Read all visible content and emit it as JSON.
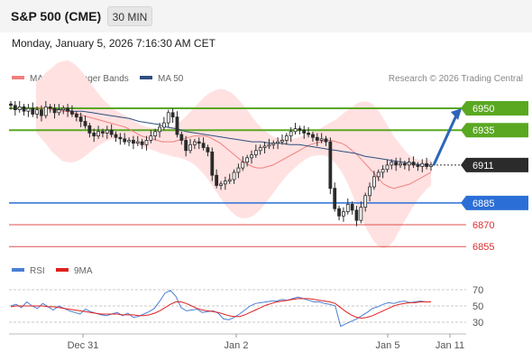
{
  "header": {
    "title": "S&P 500 (CME)",
    "timeframe": "30 MIN",
    "timestamp": "Monday, January 5, 2026 7:16:30 AM CET"
  },
  "legend": {
    "bollinger": "MA 20 + Bollinger Bands",
    "ma50": "MA 50",
    "credit": "Research © 2026 Trading Central"
  },
  "rsi": {
    "label": "RSI",
    "ma_label": "9MA",
    "ticks": [
      "70",
      "50",
      "30"
    ]
  },
  "colors": {
    "resistance": "#5aa822",
    "pivot": "#2b6fd6",
    "support": "#e05050",
    "current": "#2b2b2b",
    "bollinger_fill": "#ffe1e1",
    "ma20": "#f08080",
    "ma50": "#2f4f7f",
    "candle": "#2b2b2b",
    "arrow": "#2b66b8"
  },
  "chart_data": [
    {
      "type": "candlestick",
      "title": "S&P 500 (CME)",
      "timeframe": "30 MIN",
      "x_ticks": [
        "Dec 31",
        "Jan 2",
        "Jan 5",
        "Jan 11"
      ],
      "ylim": [
        6845,
        6965
      ],
      "levels": [
        {
          "value": 6950,
          "label": "6950",
          "kind": "resistance"
        },
        {
          "value": 6935,
          "label": "6935",
          "kind": "resistance"
        },
        {
          "value": 6911,
          "label": "6911",
          "kind": "current"
        },
        {
          "value": 6885,
          "label": "6885",
          "kind": "pivot"
        },
        {
          "value": 6870,
          "label": "6870",
          "kind": "support"
        },
        {
          "value": 6855,
          "label": "6855",
          "kind": "support"
        }
      ],
      "close": [
        6952,
        6949,
        6951,
        6948,
        6950,
        6946,
        6949,
        6945,
        6951,
        6950,
        6947,
        6949,
        6950,
        6948,
        6946,
        6944,
        6941,
        6938,
        6933,
        6931,
        6934,
        6933,
        6935,
        6932,
        6930,
        6929,
        6927,
        6928,
        6926,
        6927,
        6925,
        6928,
        6931,
        6934,
        6937,
        6940,
        6947,
        6944,
        6932,
        6928,
        6921,
        6925,
        6927,
        6926,
        6923,
        6920,
        6904,
        6897,
        6898,
        6900,
        6901,
        6906,
        6909,
        6913,
        6916,
        6918,
        6921,
        6923,
        6924,
        6925,
        6926,
        6927,
        6928,
        6931,
        6934,
        6936,
        6935,
        6933,
        6932,
        6930,
        6928,
        6929,
        6927,
        6895,
        6881,
        6876,
        6879,
        6884,
        6880,
        6873,
        6882,
        6890,
        6896,
        6903,
        6906,
        6908,
        6911,
        6913,
        6911,
        6912,
        6911,
        6913,
        6911,
        6910,
        6912,
        6910,
        6911
      ],
      "ma20": [
        6951,
        6950,
        6950,
        6949,
        6949,
        6948,
        6948,
        6947,
        6946,
        6945,
        6944,
        6943,
        6942,
        6941,
        6940,
        6939,
        6938,
        6937,
        6935,
        6933,
        6931,
        6930,
        6929,
        6928,
        6927,
        6927,
        6927,
        6928,
        6929,
        6930,
        6931,
        6931,
        6931,
        6930,
        6928,
        6926,
        6923,
        6920,
        6917,
        6914,
        6912,
        6910,
        6909,
        6909,
        6910,
        6911,
        6913,
        6915,
        6917,
        6919,
        6921,
        6923,
        6925,
        6926,
        6927,
        6928,
        6928,
        6927,
        6926,
        6924,
        6921,
        6918,
        6914,
        6910,
        6906,
        6902,
        6898,
        6896,
        6895,
        6896,
        6897,
        6898,
        6900,
        6902,
        6904,
        6906
      ],
      "ma50": [
        6949,
        6949,
        6948,
        6948,
        6947,
        6946,
        6945,
        6944,
        6943,
        6941,
        6940,
        6939,
        6937,
        6936,
        6934,
        6933,
        6932,
        6931,
        6930,
        6929,
        6928,
        6927,
        6927,
        6926,
        6926,
        6925,
        6925,
        6924,
        6923,
        6922,
        6921,
        6920,
        6919,
        6917,
        6916,
        6915,
        6914,
        6913,
        6912,
        6911,
        6911
      ],
      "projection": {
        "from": 6911,
        "to": 6950
      }
    },
    {
      "type": "line",
      "title": "RSI",
      "ylim": [
        20,
        80
      ],
      "yticks": [
        70,
        50,
        30
      ],
      "series": [
        {
          "name": "RSI",
          "values": [
            50,
            52,
            48,
            55,
            50,
            47,
            53,
            49,
            45,
            50,
            47,
            44,
            42,
            40,
            46,
            43,
            41,
            39,
            38,
            40,
            42,
            38,
            41,
            36,
            37,
            40,
            43,
            47,
            56,
            66,
            69,
            62,
            48,
            44,
            45,
            46,
            42,
            43,
            44,
            41,
            34,
            33,
            36,
            40,
            45,
            50,
            53,
            54,
            55,
            56,
            56,
            58,
            57,
            59,
            61,
            59,
            57,
            55,
            55,
            53,
            52,
            50,
            25,
            28,
            31,
            34,
            38,
            42,
            47,
            49,
            52,
            54,
            53,
            55,
            56,
            54,
            55,
            56,
            55,
            55
          ]
        },
        {
          "name": "9MA",
          "values": [
            49,
            50,
            50,
            50,
            50,
            50,
            50,
            49,
            49,
            48,
            47,
            46,
            45,
            44,
            43,
            42,
            41,
            40,
            40,
            40,
            40,
            39,
            39,
            39,
            38,
            38,
            39,
            41,
            44,
            48,
            52,
            55,
            55,
            53,
            50,
            47,
            45,
            44,
            43,
            42,
            40,
            38,
            37,
            37,
            39,
            42,
            45,
            48,
            51,
            53,
            55,
            56,
            57,
            58,
            59,
            59,
            59,
            58,
            57,
            56,
            55,
            53,
            48,
            43,
            39,
            36,
            35,
            36,
            38,
            41,
            44,
            47,
            50,
            52,
            53,
            54,
            54,
            55,
            55,
            55
          ]
        }
      ]
    }
  ]
}
